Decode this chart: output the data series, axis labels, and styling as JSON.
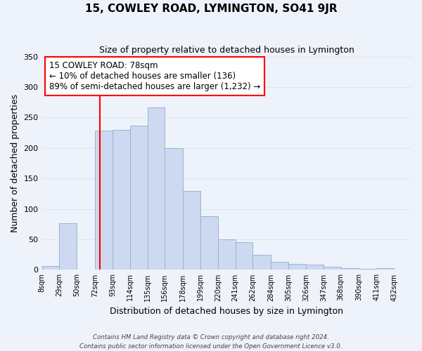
{
  "title": "15, COWLEY ROAD, LYMINGTON, SO41 9JR",
  "subtitle": "Size of property relative to detached houses in Lymington",
  "xlabel": "Distribution of detached houses by size in Lymington",
  "ylabel": "Number of detached properties",
  "bar_left_edges": [
    8,
    29,
    50,
    72,
    93,
    114,
    135,
    156,
    178,
    199,
    220,
    241,
    262,
    284,
    305,
    326,
    347,
    368,
    390,
    411
  ],
  "bar_widths": [
    21,
    21,
    22,
    21,
    21,
    21,
    21,
    22,
    21,
    21,
    21,
    21,
    22,
    21,
    21,
    21,
    21,
    22,
    21,
    21
  ],
  "bar_heights": [
    6,
    76,
    0,
    228,
    230,
    237,
    267,
    200,
    130,
    88,
    50,
    45,
    25,
    13,
    10,
    8,
    5,
    3,
    2,
    3
  ],
  "bar_color": "#ccd9f0",
  "bar_edge_color": "#9ab3d5",
  "tick_labels": [
    "8sqm",
    "29sqm",
    "50sqm",
    "72sqm",
    "93sqm",
    "114sqm",
    "135sqm",
    "156sqm",
    "178sqm",
    "199sqm",
    "220sqm",
    "241sqm",
    "262sqm",
    "284sqm",
    "305sqm",
    "326sqm",
    "347sqm",
    "368sqm",
    "390sqm",
    "411sqm",
    "432sqm"
  ],
  "tick_positions": [
    8,
    29,
    50,
    72,
    93,
    114,
    135,
    156,
    178,
    199,
    220,
    241,
    262,
    284,
    305,
    326,
    347,
    368,
    390,
    411,
    432
  ],
  "property_line_x": 78,
  "ylim": [
    0,
    350
  ],
  "yticks": [
    0,
    50,
    100,
    150,
    200,
    250,
    300,
    350
  ],
  "xlim": [
    8,
    453
  ],
  "annotation_title": "15 COWLEY ROAD: 78sqm",
  "annotation_line1": "← 10% of detached houses are smaller (136)",
  "annotation_line2": "89% of semi-detached houses are larger (1,232) →",
  "grid_color": "#dde6f0",
  "footer_line1": "Contains HM Land Registry data © Crown copyright and database right 2024.",
  "footer_line2": "Contains public sector information licensed under the Open Government Licence v3.0.",
  "background_color": "#eef2fa"
}
